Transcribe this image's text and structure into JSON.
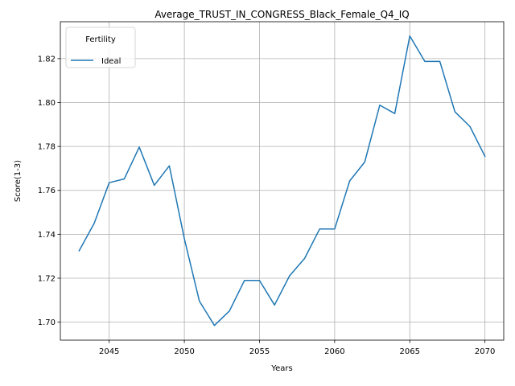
{
  "chart_data": {
    "type": "line",
    "title": "Average_TRUST_IN_CONGRESS_Black_Female_Q4_IQ",
    "xlabel": "Years",
    "ylabel": "Score(1-3)",
    "xlim": [
      2041.75,
      2071.25
    ],
    "ylim": [
      1.6918,
      1.8368
    ],
    "xticks": [
      2045,
      2050,
      2055,
      2060,
      2065,
      2070
    ],
    "yticks": [
      1.7,
      1.72,
      1.74,
      1.76,
      1.78,
      1.8,
      1.82
    ],
    "grid": true,
    "legend": {
      "title": "Fertility",
      "placement": "top-left"
    },
    "series": [
      {
        "name": "Ideal",
        "color": "#1f77b4",
        "x": [
          2043,
          2044,
          2045,
          2046,
          2047,
          2048,
          2049,
          2050,
          2051,
          2052,
          2053,
          2054,
          2055,
          2056,
          2057,
          2058,
          2059,
          2060,
          2061,
          2062,
          2063,
          2064,
          2065,
          2066,
          2067,
          2068,
          2069,
          2070
        ],
        "y": [
          1.7325,
          1.745,
          1.7635,
          1.7652,
          1.7797,
          1.7623,
          1.7712,
          1.738,
          1.7096,
          1.6985,
          1.7051,
          1.719,
          1.719,
          1.7078,
          1.7211,
          1.729,
          1.7424,
          1.7424,
          1.7643,
          1.7729,
          1.7988,
          1.795,
          1.8303,
          1.8187,
          1.8187,
          1.7958,
          1.7891,
          1.7755
        ]
      }
    ]
  }
}
